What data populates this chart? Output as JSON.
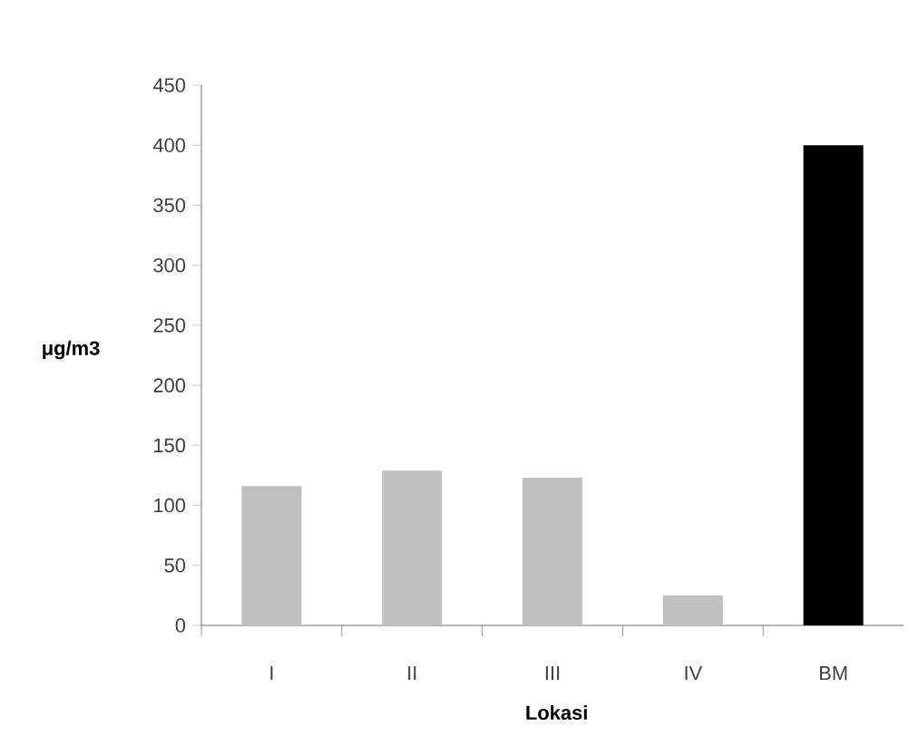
{
  "chart_data": {
    "type": "bar",
    "xlabel": "Lokasi",
    "ylabel": "μg/m3",
    "categories": [
      "I",
      "II",
      "III",
      "IV",
      "BM"
    ],
    "values": [
      116,
      129,
      123,
      25,
      400
    ],
    "colors": [
      "#c0c0c0",
      "#c0c0c0",
      "#c0c0c0",
      "#c0c0c0",
      "#000000"
    ],
    "ylim": [
      0,
      450
    ],
    "yticks": [
      0,
      50,
      100,
      150,
      200,
      250,
      300,
      350,
      400,
      450
    ]
  }
}
